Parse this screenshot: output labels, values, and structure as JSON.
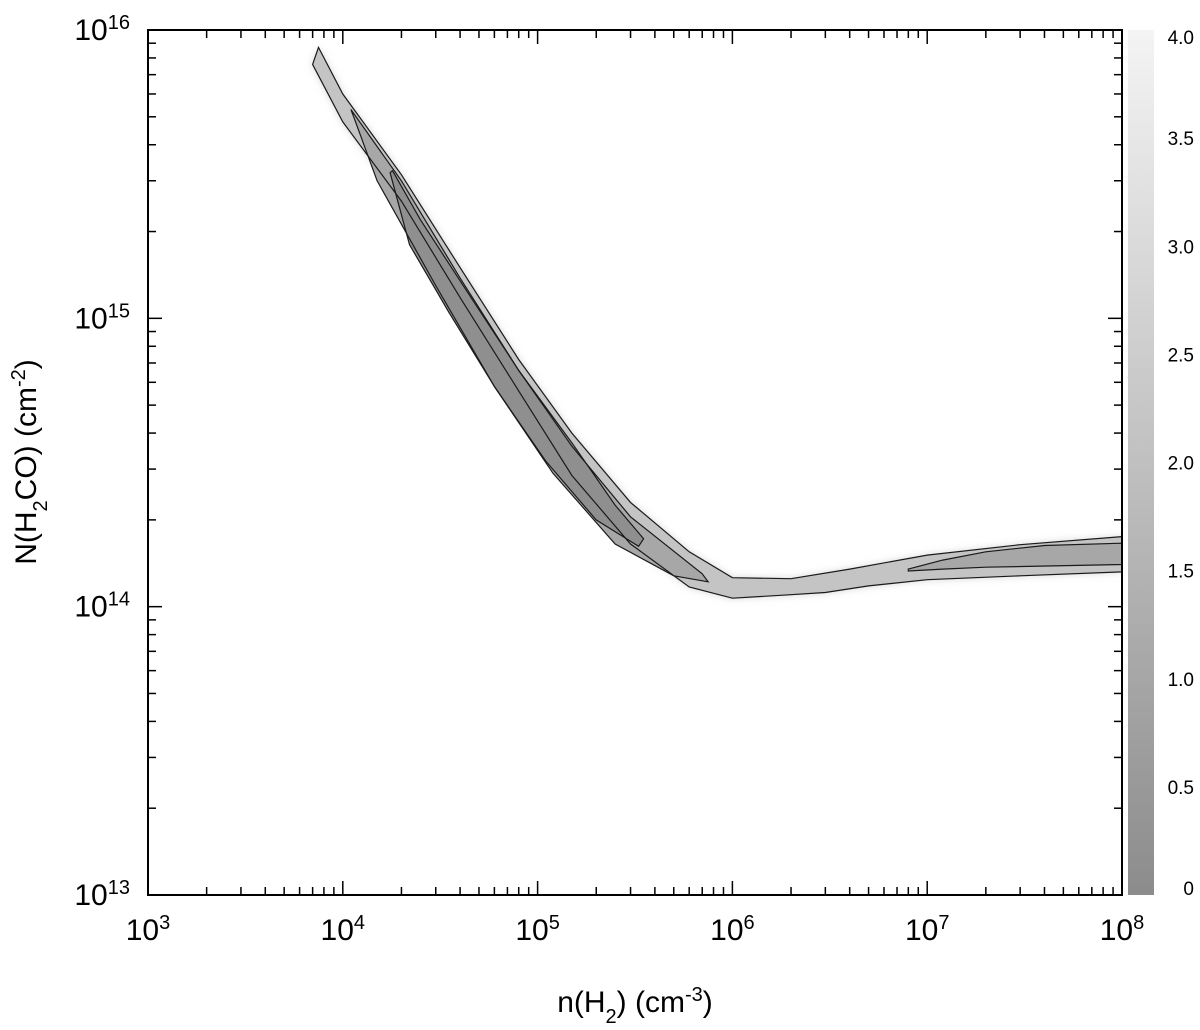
{
  "chart_data": {
    "type": "contour",
    "x_axis": {
      "scale": "log",
      "range": [
        1000,
        100000000
      ],
      "label_parts": {
        "a": "n(H",
        "sub": "2",
        "b": ") (cm",
        "sup": "-3",
        "c": ")"
      },
      "ticks": [
        {
          "value": 1000,
          "base": "10",
          "exp": "3"
        },
        {
          "value": 10000,
          "base": "10",
          "exp": "4"
        },
        {
          "value": 100000,
          "base": "10",
          "exp": "5"
        },
        {
          "value": 1000000,
          "base": "10",
          "exp": "6"
        },
        {
          "value": 10000000,
          "base": "10",
          "exp": "7"
        },
        {
          "value": 100000000,
          "base": "10",
          "exp": "8"
        }
      ]
    },
    "y_axis": {
      "scale": "log",
      "range": [
        10000000000000.0,
        1e+16
      ],
      "label_parts": {
        "a": "N(H",
        "sub": "2",
        "b": "CO) (cm",
        "sup": "-2",
        "c": ")"
      },
      "ticks": [
        {
          "value": 10000000000000.0,
          "base": "10",
          "exp": "13"
        },
        {
          "value": 100000000000000.0,
          "base": "10",
          "exp": "14"
        },
        {
          "value": 1000000000000000.0,
          "base": "10",
          "exp": "15"
        },
        {
          "value": 1e+16,
          "base": "10",
          "exp": "16"
        }
      ]
    },
    "colorbar": {
      "range": [
        0,
        4.0
      ],
      "ticks": [
        "0",
        "0.5",
        "1.0",
        "1.5",
        "2.0",
        "2.5",
        "3.0",
        "3.5",
        "4.0"
      ],
      "color_low": "#8c8c8c",
      "color_high": "#f4f4f4"
    },
    "band_center": [
      [
        7000,
        8500000000000000.0
      ],
      [
        10000,
        5800000000000000.0
      ],
      [
        20000,
        2900000000000000.0
      ],
      [
        40000,
        1350000000000000.0
      ],
      [
        80000,
        640000000000000.0
      ],
      [
        150000,
        350000000000000.0
      ],
      [
        300000,
        200000000000000.0
      ],
      [
        600000,
        138000000000000.0
      ],
      [
        1000000,
        117000000000000.0
      ],
      [
        2000000,
        115000000000000.0
      ],
      [
        4000000,
        122000000000000.0
      ],
      [
        10000000,
        138000000000000.0
      ],
      [
        30000000,
        146000000000000.0
      ],
      [
        100000000,
        150000000000000.0
      ]
    ],
    "contours": [
      {
        "level": "outer",
        "x": [
          7500,
          10000,
          20000,
          40000,
          80000,
          150000,
          300000,
          600000,
          1000000,
          2000000,
          4000000,
          10000000,
          30000000,
          100000000,
          100000000,
          30000000,
          10000000,
          5000000,
          3000000,
          2000000,
          1000000,
          600000,
          300000,
          150000,
          80000,
          40000,
          20000,
          10000,
          7000
        ],
        "y": [
          8700000000000000.0,
          6000000000000000.0,
          3150000000000000.0,
          1500000000000000.0,
          720000000000000.0,
          400000000000000.0,
          230000000000000.0,
          155000000000000.0,
          126000000000000.0,
          125000000000000.0,
          135000000000000.0,
          151000000000000.0,
          164000000000000.0,
          175000000000000.0,
          132000000000000.0,
          128000000000000.0,
          124000000000000.0,
          118000000000000.0,
          112000000000000.0,
          110000000000000.0,
          107000000000000.0,
          117000000000000.0,
          165000000000000.0,
          285000000000000.0,
          560000000000000.0,
          1180000000000000.0,
          2550000000000000.0,
          4800000000000000.0,
          7600000000000000.0
        ]
      },
      {
        "level": "inner-1",
        "x": [
          11000,
          20000,
          40000,
          80000,
          150000,
          300000,
          700000,
          750000,
          500000,
          250000,
          120000,
          60000,
          30000,
          15000,
          11500
        ],
        "y": [
          5300000000000000.0,
          3000000000000000.0,
          1380000000000000.0,
          660000000000000.0,
          360000000000000.0,
          205000000000000.0,
          130000000000000.0,
          122000000000000.0,
          128000000000000.0,
          165000000000000.0,
          290000000000000.0,
          580000000000000.0,
          1300000000000000.0,
          3000000000000000.0,
          4900000000000000.0
        ]
      },
      {
        "level": "inner-2",
        "x": [
          18000,
          25000,
          40000,
          80000,
          150000,
          250000,
          350000,
          330000,
          200000,
          110000,
          60000,
          35000,
          22000,
          19000,
          17500
        ],
        "y": [
          3250000000000000.0,
          2200000000000000.0,
          1350000000000000.0,
          660000000000000.0,
          370000000000000.0,
          225000000000000.0,
          172000000000000.0,
          162000000000000.0,
          200000000000000.0,
          320000000000000.0,
          580000000000000.0,
          1050000000000000.0,
          1800000000000000.0,
          2600000000000000.0,
          3200000000000000.0
        ]
      },
      {
        "level": "inner-3",
        "x": [
          8000000,
          12000000,
          20000000,
          40000000,
          100000000,
          100000000,
          60000000,
          20000000,
          12000000,
          8000000
        ],
        "y": [
          135000000000000.0,
          145000000000000.0,
          155000000000000.0,
          163000000000000.0,
          166000000000000.0,
          140000000000000.0,
          139000000000000.0,
          137000000000000.0,
          135000000000000.0,
          133000000000000.0
        ]
      }
    ]
  }
}
